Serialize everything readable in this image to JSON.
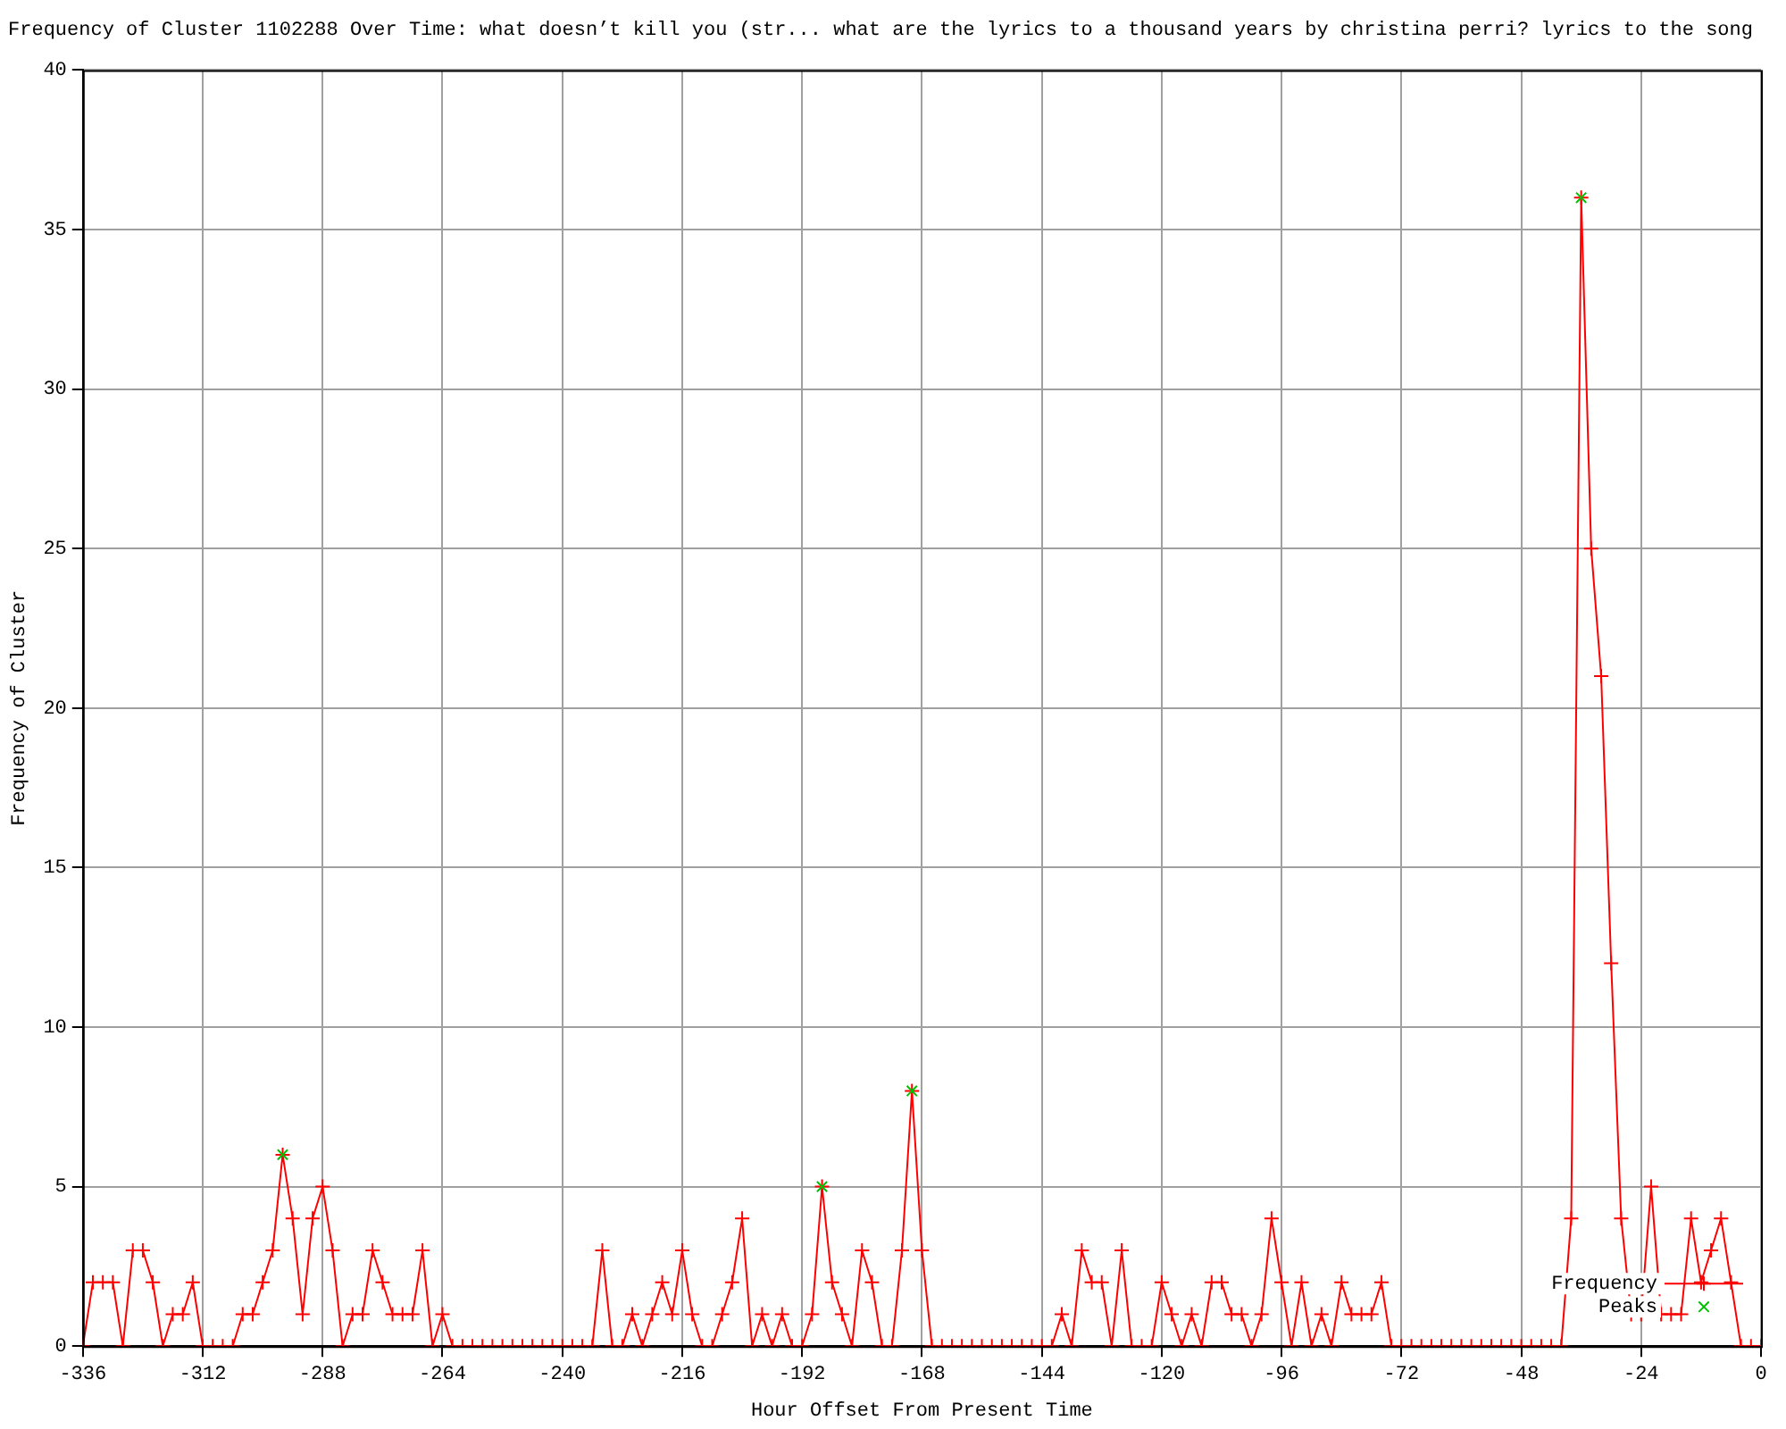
{
  "chart_data": {
    "type": "line",
    "title": "Frequency of Cluster 1102288 Over Time: what doesn’t kill you (str... what are the lyrics to a thousand years by christina perri? lyrics to the song",
    "xlabel": "Hour Offset From Present Time",
    "ylabel": "Frequency of Cluster",
    "xlim": [
      -336,
      0
    ],
    "xticks": [
      -336,
      -312,
      -288,
      -264,
      -240,
      -216,
      -192,
      -168,
      -144,
      -120,
      -96,
      -72,
      -48,
      -24,
      0
    ],
    "ylim": [
      0,
      40
    ],
    "yticks": [
      0,
      5,
      10,
      15,
      20,
      25,
      30,
      35,
      40
    ],
    "grid": true,
    "legend": "bottom right",
    "series": [
      {
        "name": "Frequency",
        "color": "#ff0000",
        "marker": "cross",
        "x": [
          -336,
          -334,
          -332,
          -330,
          -328,
          -326,
          -324,
          -322,
          -320,
          -318,
          -316,
          -314,
          -312,
          -310,
          -308,
          -306,
          -304,
          -302,
          -300,
          -298,
          -296,
          -294,
          -292,
          -290,
          -288,
          -286,
          -284,
          -282,
          -280,
          -278,
          -276,
          -274,
          -272,
          -270,
          -268,
          -266,
          -264,
          -262,
          -260,
          -258,
          -256,
          -254,
          -252,
          -250,
          -248,
          -246,
          -244,
          -242,
          -240,
          -238,
          -236,
          -234,
          -232,
          -230,
          -228,
          -226,
          -224,
          -222,
          -220,
          -218,
          -216,
          -214,
          -212,
          -210,
          -208,
          -206,
          -204,
          -202,
          -200,
          -198,
          -196,
          -194,
          -192,
          -190,
          -188,
          -186,
          -184,
          -182,
          -180,
          -178,
          -176,
          -174,
          -172,
          -170,
          -168,
          -166,
          -164,
          -162,
          -160,
          -158,
          -156,
          -154,
          -152,
          -150,
          -148,
          -146,
          -144,
          -142,
          -140,
          -138,
          -136,
          -134,
          -132,
          -130,
          -128,
          -126,
          -124,
          -122,
          -120,
          -118,
          -116,
          -114,
          -112,
          -110,
          -108,
          -106,
          -104,
          -102,
          -100,
          -98,
          -96,
          -94,
          -92,
          -90,
          -88,
          -86,
          -84,
          -82,
          -80,
          -78,
          -76,
          -74,
          -72,
          -70,
          -68,
          -66,
          -64,
          -62,
          -60,
          -58,
          -56,
          -54,
          -52,
          -50,
          -48,
          -46,
          -44,
          -42,
          -40,
          -38,
          -36,
          -34,
          -32,
          -30,
          -28,
          -26,
          -24,
          -22,
          -20,
          -18,
          -16,
          -14,
          -12,
          -10,
          -8,
          -6,
          -4,
          -2,
          0
        ],
        "values": [
          0,
          2,
          2,
          2,
          0,
          3,
          3,
          2,
          0,
          1,
          1,
          2,
          0,
          0,
          0,
          0,
          1,
          1,
          2,
          3,
          6,
          4,
          1,
          4,
          5,
          3,
          0,
          1,
          1,
          3,
          2,
          1,
          1,
          1,
          3,
          0,
          1,
          0,
          0,
          0,
          0,
          0,
          0,
          0,
          0,
          0,
          0,
          0,
          0,
          0,
          0,
          0,
          3,
          0,
          0,
          1,
          0,
          1,
          2,
          1,
          3,
          1,
          0,
          0,
          1,
          2,
          4,
          0,
          1,
          0,
          1,
          0,
          0,
          1,
          5,
          2,
          1,
          0,
          3,
          2,
          0,
          0,
          3,
          8,
          3,
          0,
          0,
          0,
          0,
          0,
          0,
          0,
          0,
          0,
          0,
          0,
          0,
          0,
          1,
          0,
          3,
          2,
          2,
          0,
          3,
          0,
          0,
          0,
          2,
          1,
          0,
          1,
          0,
          2,
          2,
          1,
          1,
          0,
          1,
          4,
          2,
          0,
          2,
          0,
          1,
          0,
          2,
          1,
          1,
          1,
          2,
          0,
          0,
          0,
          0,
          0,
          0,
          0,
          0,
          0,
          0,
          0,
          0,
          0,
          0,
          0,
          0,
          0,
          0,
          4,
          36,
          25,
          21,
          12,
          4,
          1,
          1,
          5,
          1,
          1,
          1,
          4,
          2,
          3,
          4,
          2,
          0,
          0,
          0
        ]
      },
      {
        "name": "Peaks",
        "type": "scatter",
        "color": "#00c000",
        "marker": "cross",
        "x": [
          -296,
          -188,
          -170,
          -36
        ],
        "values": [
          6,
          5,
          8,
          36
        ]
      }
    ]
  }
}
